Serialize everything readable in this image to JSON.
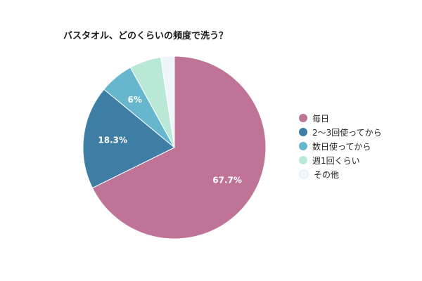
{
  "chart_data": {
    "type": "pie",
    "title": "バスタオル、どのくらいの頻度で洗う？",
    "categories": [
      "毎日",
      "2〜3回使ってから",
      "数日使ってから",
      "週1回くらい",
      "その他"
    ],
    "values": [
      67.7,
      18.3,
      6.0,
      5.6,
      2.4
    ],
    "slice_labels": [
      "67.7%",
      "18.3%",
      "6%",
      "",
      ""
    ],
    "colors": [
      "#bf7396",
      "#3f7ea4",
      "#66b7cd",
      "#b9e8d6",
      "#eef6fb"
    ],
    "legend_position": "right",
    "start_angle": "12 o'clock",
    "direction": "clockwise"
  }
}
